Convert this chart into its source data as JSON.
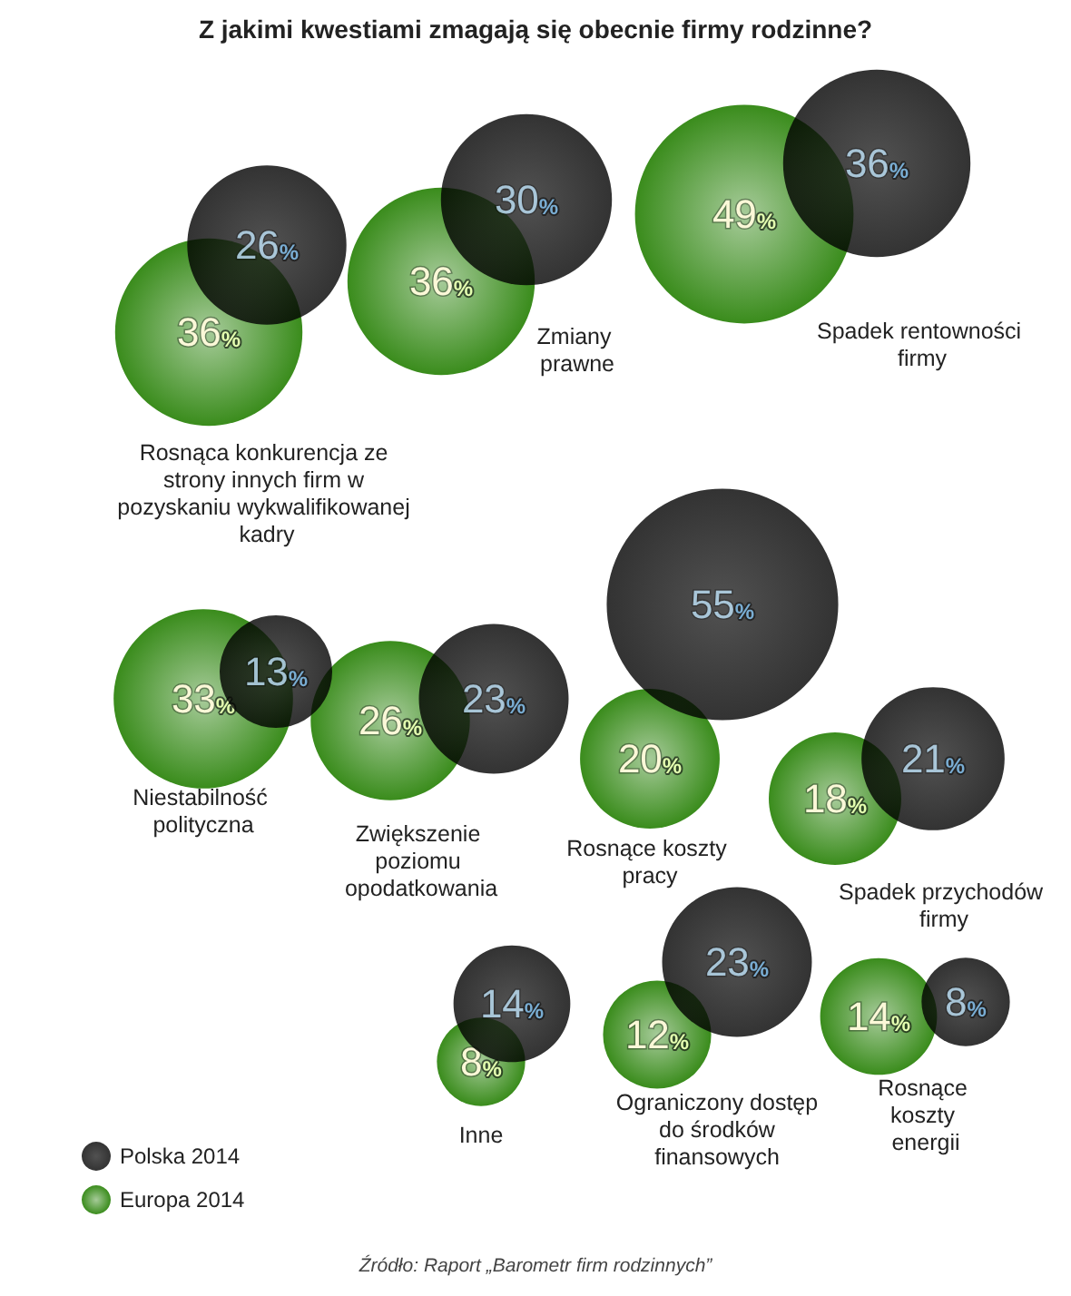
{
  "chart_data": {
    "type": "other",
    "title": "Z jakimi kwestiami zmagają się obecnie firmy rodzinne?",
    "categories": [
      "Rosnąca konkurencja ze strony innych firm w pozyskaniu wykwalifikowanej kadry",
      "Zmiany prawne",
      "Spadek rentowności firmy",
      "Niestabilność polityczna",
      "Zwiększenie poziomu opodatkowania",
      "Rosnące koszty pracy",
      "Spadek przychodów firmy",
      "Inne",
      "Ograniczony dostęp do środków finansowych",
      "Rosnące koszty energii"
    ],
    "series": [
      {
        "name": "Europa 2014",
        "color": "#3a8c1c",
        "values": [
          36,
          36,
          49,
          33,
          26,
          20,
          18,
          8,
          12,
          14
        ],
        "value_labels": [
          "36%",
          "36%",
          "49%",
          "33%",
          "26%",
          "20%",
          "18%",
          "8%",
          "12%",
          "14%"
        ]
      },
      {
        "name": "Polska 2014",
        "color": "#000000",
        "values": [
          26,
          30,
          36,
          13,
          23,
          55,
          21,
          14,
          23,
          8
        ],
        "value_labels": [
          "26%",
          "30%",
          "36%",
          "13%",
          "23%",
          "55%",
          "21%",
          "14%",
          "23%",
          "8%"
        ]
      }
    ],
    "legend": "bottom left",
    "annotations": [
      "Źródło: Raport „Barometr firm rodzinnych”"
    ]
  }
}
